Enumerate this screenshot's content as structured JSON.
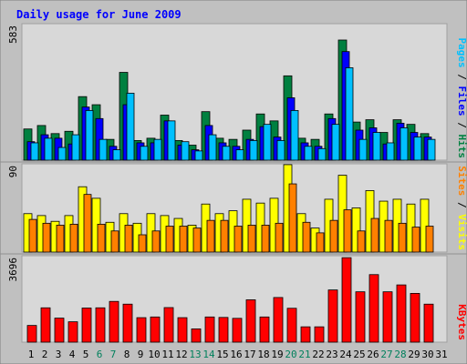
{
  "chart_data": [
    {
      "type": "bar",
      "title": "Daily usage for June 2009",
      "ymax_label": "583",
      "ylim": [
        0,
        583
      ],
      "series_labels": [
        "Pages",
        "Files",
        "Hits"
      ],
      "series_colors": {
        "Hits": "#008040",
        "Files": "#0000ff",
        "Pages": "#00c0ff"
      },
      "categories": [
        "1",
        "2",
        "3",
        "4",
        "5",
        "6",
        "7",
        "8",
        "9",
        "10",
        "11",
        "12",
        "13",
        "14",
        "15",
        "16",
        "17",
        "18",
        "19",
        "20",
        "21",
        "22",
        "23",
        "24",
        "25",
        "26",
        "27",
        "28",
        "29",
        "30",
        "31"
      ],
      "series": [
        {
          "name": "Hits",
          "values": [
            135,
            150,
            115,
            125,
            275,
            240,
            90,
            380,
            85,
            95,
            195,
            85,
            65,
            210,
            95,
            90,
            130,
            200,
            170,
            365,
            95,
            90,
            200,
            520,
            165,
            175,
            120,
            175,
            155,
            115,
            null
          ]
        },
        {
          "name": "Files",
          "values": [
            80,
            110,
            95,
            70,
            230,
            180,
            60,
            240,
            75,
            75,
            170,
            65,
            45,
            150,
            75,
            60,
            90,
            145,
            100,
            270,
            75,
            60,
            180,
            470,
            130,
            140,
            70,
            160,
            120,
            100,
            null
          ]
        },
        {
          "name": "Pages",
          "values": [
            75,
            95,
            55,
            110,
            215,
            90,
            45,
            290,
            60,
            90,
            170,
            80,
            40,
            110,
            60,
            45,
            85,
            155,
            85,
            215,
            60,
            50,
            155,
            400,
            90,
            120,
            75,
            140,
            100,
            90,
            null
          ]
        }
      ]
    },
    {
      "type": "bar",
      "ymax_label": "90",
      "ylim": [
        0,
        90
      ],
      "series_labels": [
        "Sites",
        "Visits"
      ],
      "series_colors": {
        "Visits": "#ffff00",
        "Sites": "#ff8000"
      },
      "categories": [
        "1",
        "2",
        "3",
        "4",
        "5",
        "6",
        "7",
        "8",
        "9",
        "10",
        "11",
        "12",
        "13",
        "14",
        "15",
        "16",
        "17",
        "18",
        "19",
        "20",
        "21",
        "22",
        "23",
        "24",
        "25",
        "26",
        "27",
        "28",
        "29",
        "30",
        "31"
      ],
      "series": [
        {
          "name": "Visits",
          "values": [
            40,
            38,
            32,
            38,
            68,
            56,
            31,
            40,
            30,
            40,
            38,
            35,
            28,
            50,
            40,
            43,
            55,
            51,
            56,
            91,
            40,
            25,
            55,
            80,
            46,
            64,
            53,
            55,
            50,
            55,
            null
          ]
        },
        {
          "name": "Sites",
          "values": [
            34,
            30,
            28,
            29,
            60,
            29,
            22,
            28,
            18,
            22,
            27,
            27,
            25,
            33,
            33,
            27,
            28,
            28,
            30,
            71,
            31,
            20,
            33,
            44,
            22,
            35,
            33,
            30,
            26,
            27,
            null
          ]
        }
      ]
    },
    {
      "type": "bar",
      "ymax_label": "3696",
      "ylim": [
        0,
        3696
      ],
      "series_labels": [
        "KBytes"
      ],
      "series_colors": {
        "KBytes": "#ff0000"
      },
      "categories": [
        "1",
        "2",
        "3",
        "4",
        "5",
        "6",
        "7",
        "8",
        "9",
        "10",
        "11",
        "12",
        "13",
        "14",
        "15",
        "16",
        "17",
        "18",
        "19",
        "20",
        "21",
        "22",
        "23",
        "24",
        "25",
        "26",
        "27",
        "28",
        "29",
        "30",
        "31"
      ],
      "series": [
        {
          "name": "KBytes",
          "values": [
            730,
            1500,
            1050,
            890,
            1490,
            1500,
            1780,
            1660,
            1070,
            1100,
            1510,
            1070,
            580,
            1100,
            1080,
            1040,
            1850,
            1100,
            1950,
            1480,
            670,
            670,
            2280,
            3690,
            2200,
            2950,
            2200,
            2500,
            2130,
            1660,
            null
          ]
        }
      ]
    }
  ],
  "weekend_days": [
    "6",
    "7",
    "13",
    "14",
    "20",
    "21",
    "27",
    "28"
  ],
  "colors": {
    "frame_bg": "#c0c0c0",
    "plot_bg": "#d8d8d8",
    "title": "#0000ff",
    "day_label": "#000000",
    "weekend_label": "#00805c",
    "separator": "#000000",
    "bar_outline": "#000000"
  }
}
